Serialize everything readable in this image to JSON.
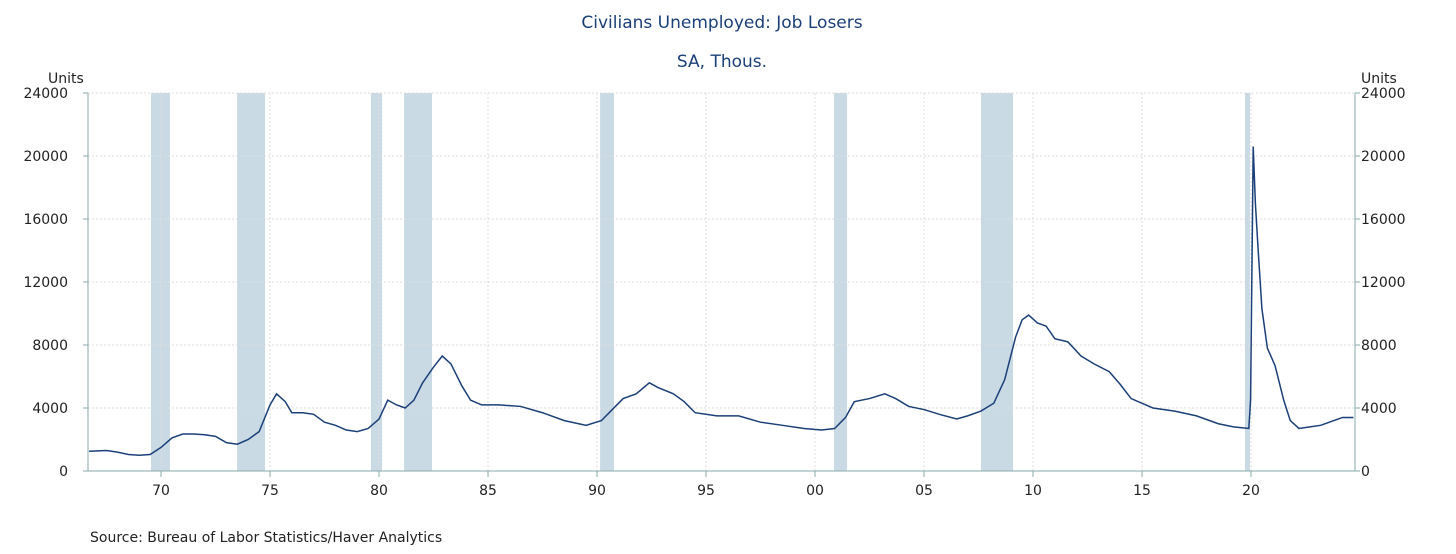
{
  "chart_data": {
    "type": "line",
    "title": "Civilians Unemployed: Job Losers",
    "subtitle": "SA, Thous.",
    "y_label": "Units",
    "y2_label": "Units",
    "source": "Source:  Bureau of Labor Statistics/Haver Analytics",
    "xlim": [
      1966.65,
      2024.77
    ],
    "xticks": [
      {
        "value": 1970,
        "label": "70"
      },
      {
        "value": 1975,
        "label": "75"
      },
      {
        "value": 1980,
        "label": "80"
      },
      {
        "value": 1985,
        "label": "85"
      },
      {
        "value": 1990,
        "label": "90"
      },
      {
        "value": 1995,
        "label": "95"
      },
      {
        "value": 2000,
        "label": "00"
      },
      {
        "value": 2005,
        "label": "05"
      },
      {
        "value": 2010,
        "label": "10"
      },
      {
        "value": 2015,
        "label": "15"
      },
      {
        "value": 2020,
        "label": "20"
      }
    ],
    "ylim": [
      0,
      24000
    ],
    "yticks": [
      0,
      4000,
      8000,
      12000,
      16000,
      20000,
      24000
    ],
    "y2lim": [
      0,
      24000
    ],
    "y2ticks": [
      0,
      4000,
      8000,
      12000,
      16000,
      20000,
      24000
    ],
    "grid": true,
    "shade_color": "#c9dae5",
    "recessions": [
      [
        1969.54,
        1970.41
      ],
      [
        1973.49,
        1974.77
      ],
      [
        1979.63,
        1980.14
      ],
      [
        1981.15,
        1982.43
      ],
      [
        1990.14,
        1990.78
      ],
      [
        2000.87,
        2001.47
      ],
      [
        2007.61,
        2009.08
      ],
      [
        2019.72,
        2019.95
      ]
    ],
    "series": [
      {
        "name": "Civilians Unemployed: Job Losers",
        "color": "#1b3f78",
        "x": [
          1966.7,
          1967.5,
          1968.0,
          1968.5,
          1969.0,
          1969.5,
          1970.0,
          1970.5,
          1971.0,
          1971.5,
          1972.0,
          1972.5,
          1973.0,
          1973.5,
          1974.0,
          1974.5,
          1975.0,
          1975.3,
          1975.7,
          1976.0,
          1976.5,
          1977.0,
          1977.5,
          1978.0,
          1978.5,
          1979.0,
          1979.5,
          1980.0,
          1980.4,
          1980.8,
          1981.2,
          1981.6,
          1982.0,
          1982.5,
          1982.9,
          1983.3,
          1983.8,
          1984.2,
          1984.7,
          1985.5,
          1986.5,
          1987.5,
          1988.5,
          1989.5,
          1990.2,
          1990.7,
          1991.2,
          1991.8,
          1992.4,
          1992.8,
          1993.5,
          1994.0,
          1994.5,
          1995.5,
          1996.5,
          1997.5,
          1998.5,
          1999.5,
          2000.3,
          2000.9,
          2001.4,
          2001.8,
          2002.5,
          2003.2,
          2003.7,
          2004.3,
          2005.0,
          2005.7,
          2006.5,
          2007.0,
          2007.6,
          2008.2,
          2008.7,
          2009.2,
          2009.5,
          2009.8,
          2010.2,
          2010.6,
          2011.0,
          2011.6,
          2012.2,
          2012.8,
          2013.5,
          2014.0,
          2014.5,
          2015.0,
          2015.5,
          2016.5,
          2017.5,
          2018.5,
          2019.2,
          2019.9,
          2019.98,
          2020.05,
          2020.1,
          2020.2,
          2020.32,
          2020.5,
          2020.75,
          2021.1,
          2021.5,
          2021.8,
          2022.2,
          2022.7,
          2023.2,
          2023.8,
          2024.2,
          2024.7
        ],
        "values": [
          1250,
          1300,
          1200,
          1050,
          1000,
          1050,
          1500,
          2100,
          2350,
          2350,
          2300,
          2200,
          1800,
          1700,
          2000,
          2500,
          4200,
          4900,
          4400,
          3700,
          3700,
          3600,
          3100,
          2900,
          2600,
          2500,
          2700,
          3300,
          4500,
          4200,
          4000,
          4500,
          5600,
          6600,
          7300,
          6800,
          5400,
          4500,
          4200,
          4200,
          4100,
          3700,
          3200,
          2900,
          3200,
          3900,
          4600,
          4900,
          5600,
          5300,
          4900,
          4400,
          3700,
          3500,
          3500,
          3100,
          2900,
          2700,
          2600,
          2700,
          3400,
          4400,
          4600,
          4900,
          4600,
          4100,
          3900,
          3600,
          3300,
          3500,
          3800,
          4300,
          5800,
          8500,
          9600,
          9900,
          9400,
          9200,
          8400,
          8200,
          7300,
          6800,
          6300,
          5500,
          4600,
          4300,
          4000,
          3800,
          3500,
          3000,
          2800,
          2700,
          4500,
          14000,
          20600,
          17000,
          14200,
          10300,
          7800,
          6700,
          4500,
          3200,
          2700,
          2800,
          2900,
          3200,
          3400,
          3400
        ]
      }
    ]
  }
}
